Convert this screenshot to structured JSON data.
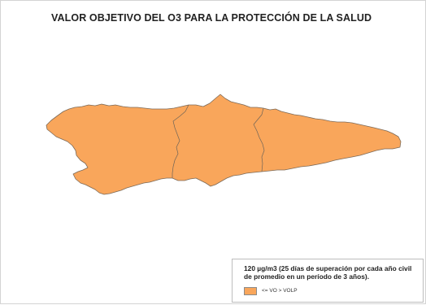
{
  "map": {
    "title": "VALOR OBJETIVO DEL O3 PARA LA PROTECCIÓN DE LA SALUD",
    "region_color": "#f9a65b",
    "zones": [
      {
        "id": "occidental"
      },
      {
        "id": "central"
      },
      {
        "id": "oriental"
      }
    ]
  },
  "legend": {
    "title_line1": "120 µg/m3 (25 días de superación por cada año civil",
    "title_line2": "de promedio en un período de 3 años).",
    "items": [
      {
        "label": "<= VO > VOLP",
        "color": "#f9a65b"
      }
    ]
  }
}
